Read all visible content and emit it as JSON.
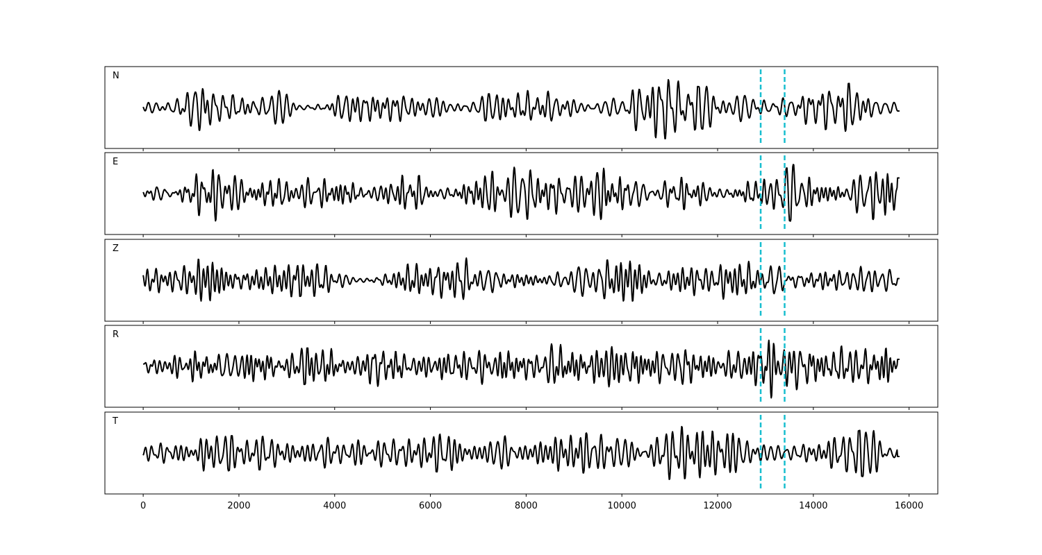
{
  "chart_data": {
    "type": "line",
    "title": "",
    "xlabel": "",
    "ylabel": "",
    "xlim": [
      -800,
      16600
    ],
    "x_range": [
      0,
      15800
    ],
    "x_ticks": [
      0,
      2000,
      4000,
      6000,
      8000,
      10000,
      12000,
      14000,
      16000
    ],
    "tick_labels": [
      "0",
      "2000",
      "4000",
      "6000",
      "8000",
      "10000",
      "12000",
      "14000",
      "16000"
    ],
    "grid": false,
    "trace_color": "#000000",
    "marker_color": "#17becf",
    "markers": [
      12900,
      13400
    ],
    "panels": [
      {
        "label": "N",
        "seed": 11,
        "end_value": -0.1,
        "envelope": [
          [
            0,
            0.25
          ],
          [
            1300,
            0.7
          ],
          [
            1800,
            0.35
          ],
          [
            2800,
            0.5
          ],
          [
            3500,
            0.3
          ],
          [
            4800,
            0.55
          ],
          [
            6200,
            0.6
          ],
          [
            7000,
            0.35
          ],
          [
            8000,
            0.55
          ],
          [
            9000,
            0.5
          ],
          [
            10000,
            0.4
          ],
          [
            10500,
            0.85
          ],
          [
            10900,
            1.0
          ],
          [
            11600,
            0.6
          ],
          [
            12500,
            0.8
          ],
          [
            12900,
            0.7
          ],
          [
            13400,
            0.25
          ],
          [
            14000,
            0.6
          ],
          [
            15200,
            0.75
          ],
          [
            15800,
            0.45
          ]
        ]
      },
      {
        "label": "E",
        "seed": 23,
        "end_value": 0.45,
        "envelope": [
          [
            0,
            0.25
          ],
          [
            1000,
            0.55
          ],
          [
            1750,
            0.9
          ],
          [
            2500,
            0.55
          ],
          [
            3700,
            0.5
          ],
          [
            4700,
            0.6
          ],
          [
            6000,
            0.5
          ],
          [
            7200,
            0.6
          ],
          [
            7800,
            0.85
          ],
          [
            8400,
            0.6
          ],
          [
            9200,
            0.85
          ],
          [
            10400,
            0.5
          ],
          [
            11500,
            0.45
          ],
          [
            12600,
            0.4
          ],
          [
            13100,
            0.5
          ],
          [
            13600,
            0.85
          ],
          [
            14200,
            0.45
          ],
          [
            15800,
            0.9
          ]
        ]
      },
      {
        "label": "Z",
        "seed": 37,
        "end_value": 0.05,
        "envelope": [
          [
            0,
            0.4
          ],
          [
            800,
            0.6
          ],
          [
            1200,
            0.8
          ],
          [
            2500,
            0.5
          ],
          [
            3500,
            0.45
          ],
          [
            4400,
            0.55
          ],
          [
            6200,
            0.5
          ],
          [
            6600,
            0.7
          ],
          [
            7300,
            0.8
          ],
          [
            8000,
            0.45
          ],
          [
            9600,
            0.55
          ],
          [
            10500,
            0.85
          ],
          [
            11500,
            0.6
          ],
          [
            12600,
            0.55
          ],
          [
            13400,
            0.7
          ],
          [
            14000,
            0.5
          ],
          [
            15800,
            0.55
          ]
        ]
      },
      {
        "label": "R",
        "seed": 41,
        "end_value": 0.2,
        "envelope": [
          [
            0,
            0.2
          ],
          [
            1000,
            0.45
          ],
          [
            1800,
            0.7
          ],
          [
            3000,
            0.5
          ],
          [
            4700,
            0.6
          ],
          [
            6500,
            0.4
          ],
          [
            7500,
            0.6
          ],
          [
            8500,
            0.7
          ],
          [
            9800,
            0.6
          ],
          [
            10800,
            0.75
          ],
          [
            11800,
            0.5
          ],
          [
            12800,
            0.55
          ],
          [
            13000,
            0.9
          ],
          [
            13600,
            0.95
          ],
          [
            14200,
            0.5
          ],
          [
            15800,
            0.85
          ]
        ]
      },
      {
        "label": "T",
        "seed": 53,
        "end_value": -0.1,
        "envelope": [
          [
            0,
            0.3
          ],
          [
            1300,
            0.8
          ],
          [
            1800,
            0.5
          ],
          [
            3500,
            0.45
          ],
          [
            5500,
            0.45
          ],
          [
            6200,
            0.55
          ],
          [
            7500,
            0.5
          ],
          [
            8500,
            0.55
          ],
          [
            10000,
            0.6
          ],
          [
            10800,
            0.95
          ],
          [
            11400,
            0.7
          ],
          [
            12400,
            0.8
          ],
          [
            12900,
            0.7
          ],
          [
            13400,
            0.3
          ],
          [
            14500,
            0.45
          ],
          [
            15200,
            0.75
          ],
          [
            15800,
            0.4
          ]
        ]
      }
    ]
  }
}
